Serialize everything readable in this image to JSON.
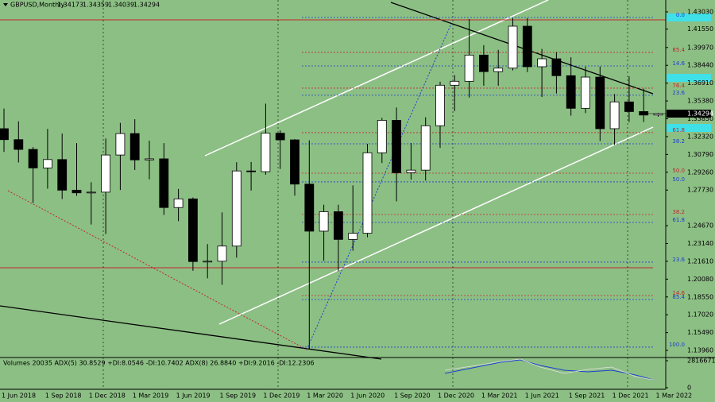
{
  "chart_data": {
    "type": "candlestick",
    "title": "GBPUSD,Monthly",
    "categories": [
      "1 Jun 2018",
      null,
      null,
      "1 Sep 2018",
      null,
      null,
      "1 Dec 2018",
      null,
      null,
      "1 Mar 2019",
      null,
      null,
      "1 Jun 2019",
      null,
      null,
      "1 Sep 2019",
      null,
      null,
      "1 Dec 2019",
      null,
      null,
      "1 Mar 2020",
      null,
      null,
      "1 Jun 2020",
      null,
      null,
      "1 Sep 2020",
      null,
      null,
      "1 Dec 2020",
      null,
      null,
      "1 Mar 2021",
      null,
      null,
      "1 Jun 2021",
      null,
      null,
      "1 Sep 2021",
      null,
      null,
      "1 Dec 2021",
      null,
      null,
      "1 Mar 2022"
    ],
    "open": [
      1.33,
      1.3206,
      1.3122,
      1.2963,
      1.3035,
      1.2772,
      1.2749,
      1.2755,
      1.3074,
      1.3258,
      1.3032,
      1.3041,
      1.2623,
      1.2697,
      1.2159,
      1.2162,
      1.2292,
      1.2937,
      1.2931,
      1.3261,
      1.3204,
      1.2824,
      1.242,
      1.2587,
      1.2349,
      1.2402,
      1.3093,
      1.3372,
      1.2922,
      1.2944,
      1.3325,
      1.3673,
      1.3707,
      1.3932,
      1.379,
      1.382,
      1.418,
      1.3832,
      1.39,
      1.3755,
      1.3475,
      1.3743,
      1.33,
      1.353,
      1.3447,
      1.34173
    ],
    "high": [
      1.3473,
      1.3363,
      1.3142,
      1.3298,
      1.3258,
      1.3176,
      1.284,
      1.3216,
      1.335,
      1.3381,
      1.3197,
      1.3176,
      1.2783,
      1.2709,
      1.2309,
      1.2582,
      1.3012,
      1.3014,
      1.3515,
      1.3285,
      1.321,
      1.32,
      1.2647,
      1.2647,
      1.2813,
      1.317,
      1.3393,
      1.3482,
      1.3177,
      1.3398,
      1.3703,
      1.3759,
      1.4241,
      1.4017,
      1.3977,
      1.4249,
      1.425,
      1.3985,
      1.3958,
      1.3913,
      1.3834,
      1.3834,
      1.3598,
      1.3749,
      1.3643,
      1.34359
    ],
    "low": [
      1.31,
      1.301,
      1.2662,
      1.2785,
      1.2696,
      1.2723,
      1.2477,
      1.2396,
      1.2773,
      1.2945,
      1.2865,
      1.2559,
      1.2506,
      1.208,
      1.2015,
      1.1959,
      1.2193,
      1.2769,
      1.2905,
      1.2954,
      1.2725,
      1.1409,
      1.2166,
      1.2076,
      1.2252,
      1.2368,
      1.3005,
      1.2676,
      1.2863,
      1.2855,
      1.3135,
      1.3451,
      1.3567,
      1.3669,
      1.3669,
      1.38,
      1.3786,
      1.3572,
      1.3602,
      1.3412,
      1.3434,
      1.3194,
      1.3161,
      1.3357,
      1.3357,
      1.34039
    ],
    "close": [
      1.3206,
      1.3122,
      1.2963,
      1.3035,
      1.2772,
      1.2749,
      1.2755,
      1.3074,
      1.3258,
      1.3032,
      1.3041,
      1.2623,
      1.2697,
      1.2159,
      1.2162,
      1.2292,
      1.2937,
      1.2931,
      1.3261,
      1.3204,
      1.2824,
      1.242,
      1.2587,
      1.2349,
      1.2402,
      1.3093,
      1.3372,
      1.2922,
      1.2944,
      1.3325,
      1.3673,
      1.3707,
      1.3932,
      1.379,
      1.382,
      1.418,
      1.3832,
      1.39,
      1.3755,
      1.3475,
      1.3743,
      1.33,
      1.353,
      1.3447,
      1.3417,
      1.34294
    ],
    "up_color": "#ffffff",
    "down_color": "#000000",
    "background": "#8cbf84",
    "ylim": [
      1.1335,
      1.4405
    ],
    "yticks": [
      {
        "value": 1.4303,
        "label": "1.43030"
      },
      {
        "value": 1.4155,
        "label": "1.41550"
      },
      {
        "value": 1.3997,
        "label": "1.39970"
      },
      {
        "value": 1.3844,
        "label": "1.38440"
      },
      {
        "value": 1.3691,
        "label": "1.36910"
      },
      {
        "value": 1.3538,
        "label": "1.35380"
      },
      {
        "value": 1.3385,
        "label": "1.33850"
      },
      {
        "value": 1.3232,
        "label": "1.32320"
      },
      {
        "value": 1.3079,
        "label": "1.30790"
      },
      {
        "value": 1.2926,
        "label": "1.29260"
      },
      {
        "value": 1.2773,
        "label": "1.27730"
      },
      {
        "value": 1.2467,
        "label": "1.24670"
      },
      {
        "value": 1.2314,
        "label": "1.23140"
      },
      {
        "value": 1.2161,
        "label": "1.21610"
      },
      {
        "value": 1.2008,
        "label": "1.20080"
      },
      {
        "value": 1.1855,
        "label": "1.18550"
      },
      {
        "value": 1.1702,
        "label": "1.17020"
      },
      {
        "value": 1.1549,
        "label": "1.15490"
      },
      {
        "value": 1.1396,
        "label": "1.13960"
      }
    ],
    "fib_levels": [
      {
        "label": "0.0",
        "value": 1.4255,
        "color": "#1a3fd0"
      },
      {
        "label": "85.4",
        "value": 1.3955,
        "color": "#c0282a"
      },
      {
        "label": "14.6",
        "value": 1.3839,
        "color": "#1a3fd0"
      },
      {
        "label": "76.4",
        "value": 1.3648,
        "color": "#c0282a"
      },
      {
        "label": "23.6",
        "value": 1.3587,
        "color": "#1a3fd0"
      },
      {
        "label": "61.8",
        "value": 1.3266,
        "color": "#c0282a"
      },
      {
        "label": "38.2",
        "value": 1.317,
        "color": "#1a3fd0"
      },
      {
        "label": "50.0",
        "value": 1.2918,
        "color": "#c0282a"
      },
      {
        "label": "50.0",
        "value": 1.2843,
        "color": "#1a3fd0"
      },
      {
        "label": "38.2",
        "value": 1.2563,
        "color": "#c0282a"
      },
      {
        "label": "61.8",
        "value": 1.2495,
        "color": "#1a3fd0"
      },
      {
        "label": "23.6",
        "value": 1.2154,
        "color": "#1a3fd0"
      },
      {
        "label": "14.6",
        "value": 1.1867,
        "color": "#c0282a"
      },
      {
        "label": "85.4",
        "value": 1.1833,
        "color": "#1a3fd0"
      },
      {
        "label": "100.0",
        "value": 1.1424,
        "color": "#1a3fd0"
      }
    ],
    "indicator_pane": {
      "label": "Volumes 20035  ADX(5) 30.8529 +DI:8.0546 -DI:10.7402  ADX(8) 26.8840 +DI:9.2016 -DI:12.2306",
      "yticks": [
        0,
        2816671
      ]
    }
  }
}
